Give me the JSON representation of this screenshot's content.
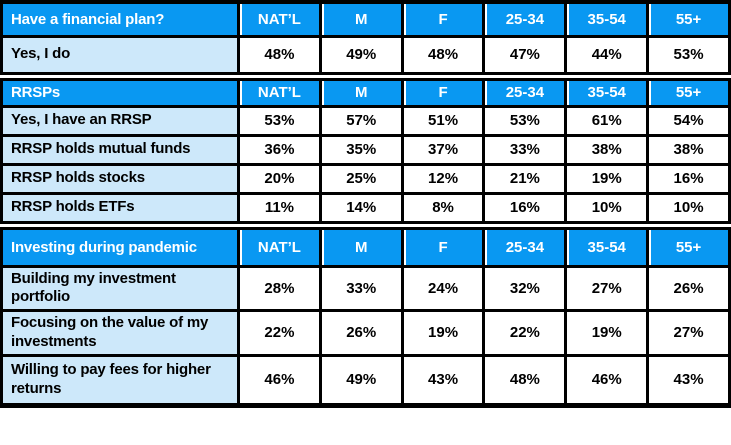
{
  "colors": {
    "header_blue": "#0998F2",
    "label_blue": "#CDE8FA",
    "border_black": "#000000",
    "value_bg": "#FFFFFF"
  },
  "chart_data": {
    "type": "table",
    "columns": [
      "NAT’L",
      "M",
      "F",
      "25-34",
      "35-54",
      "55+"
    ],
    "sections": [
      {
        "title": "Have a financial plan?",
        "rows": [
          {
            "label": "Yes, I do",
            "values": [
              "48%",
              "49%",
              "48%",
              "47%",
              "44%",
              "53%"
            ]
          }
        ]
      },
      {
        "title": "RRSPs",
        "rows": [
          {
            "label": "Yes, I have an RRSP",
            "values": [
              "53%",
              "57%",
              "51%",
              "53%",
              "61%",
              "54%"
            ]
          },
          {
            "label": "RRSP holds mutual funds",
            "values": [
              "36%",
              "35%",
              "37%",
              "33%",
              "38%",
              "38%"
            ]
          },
          {
            "label": "RRSP holds stocks",
            "values": [
              "20%",
              "25%",
              "12%",
              "21%",
              "19%",
              "16%"
            ]
          },
          {
            "label": "RRSP holds ETFs",
            "values": [
              "11%",
              "14%",
              "8%",
              "16%",
              "10%",
              "10%"
            ]
          }
        ]
      },
      {
        "title": "Investing during pandemic",
        "rows": [
          {
            "label": "Building my investment portfolio",
            "values": [
              "28%",
              "33%",
              "24%",
              "32%",
              "27%",
              "26%"
            ]
          },
          {
            "label": "Focusing on the value of my investments",
            "values": [
              "22%",
              "26%",
              "19%",
              "22%",
              "19%",
              "27%"
            ]
          },
          {
            "label": "Willing to pay fees for higher returns",
            "values": [
              "46%",
              "49%",
              "43%",
              "48%",
              "46%",
              "43%"
            ]
          }
        ]
      }
    ]
  }
}
